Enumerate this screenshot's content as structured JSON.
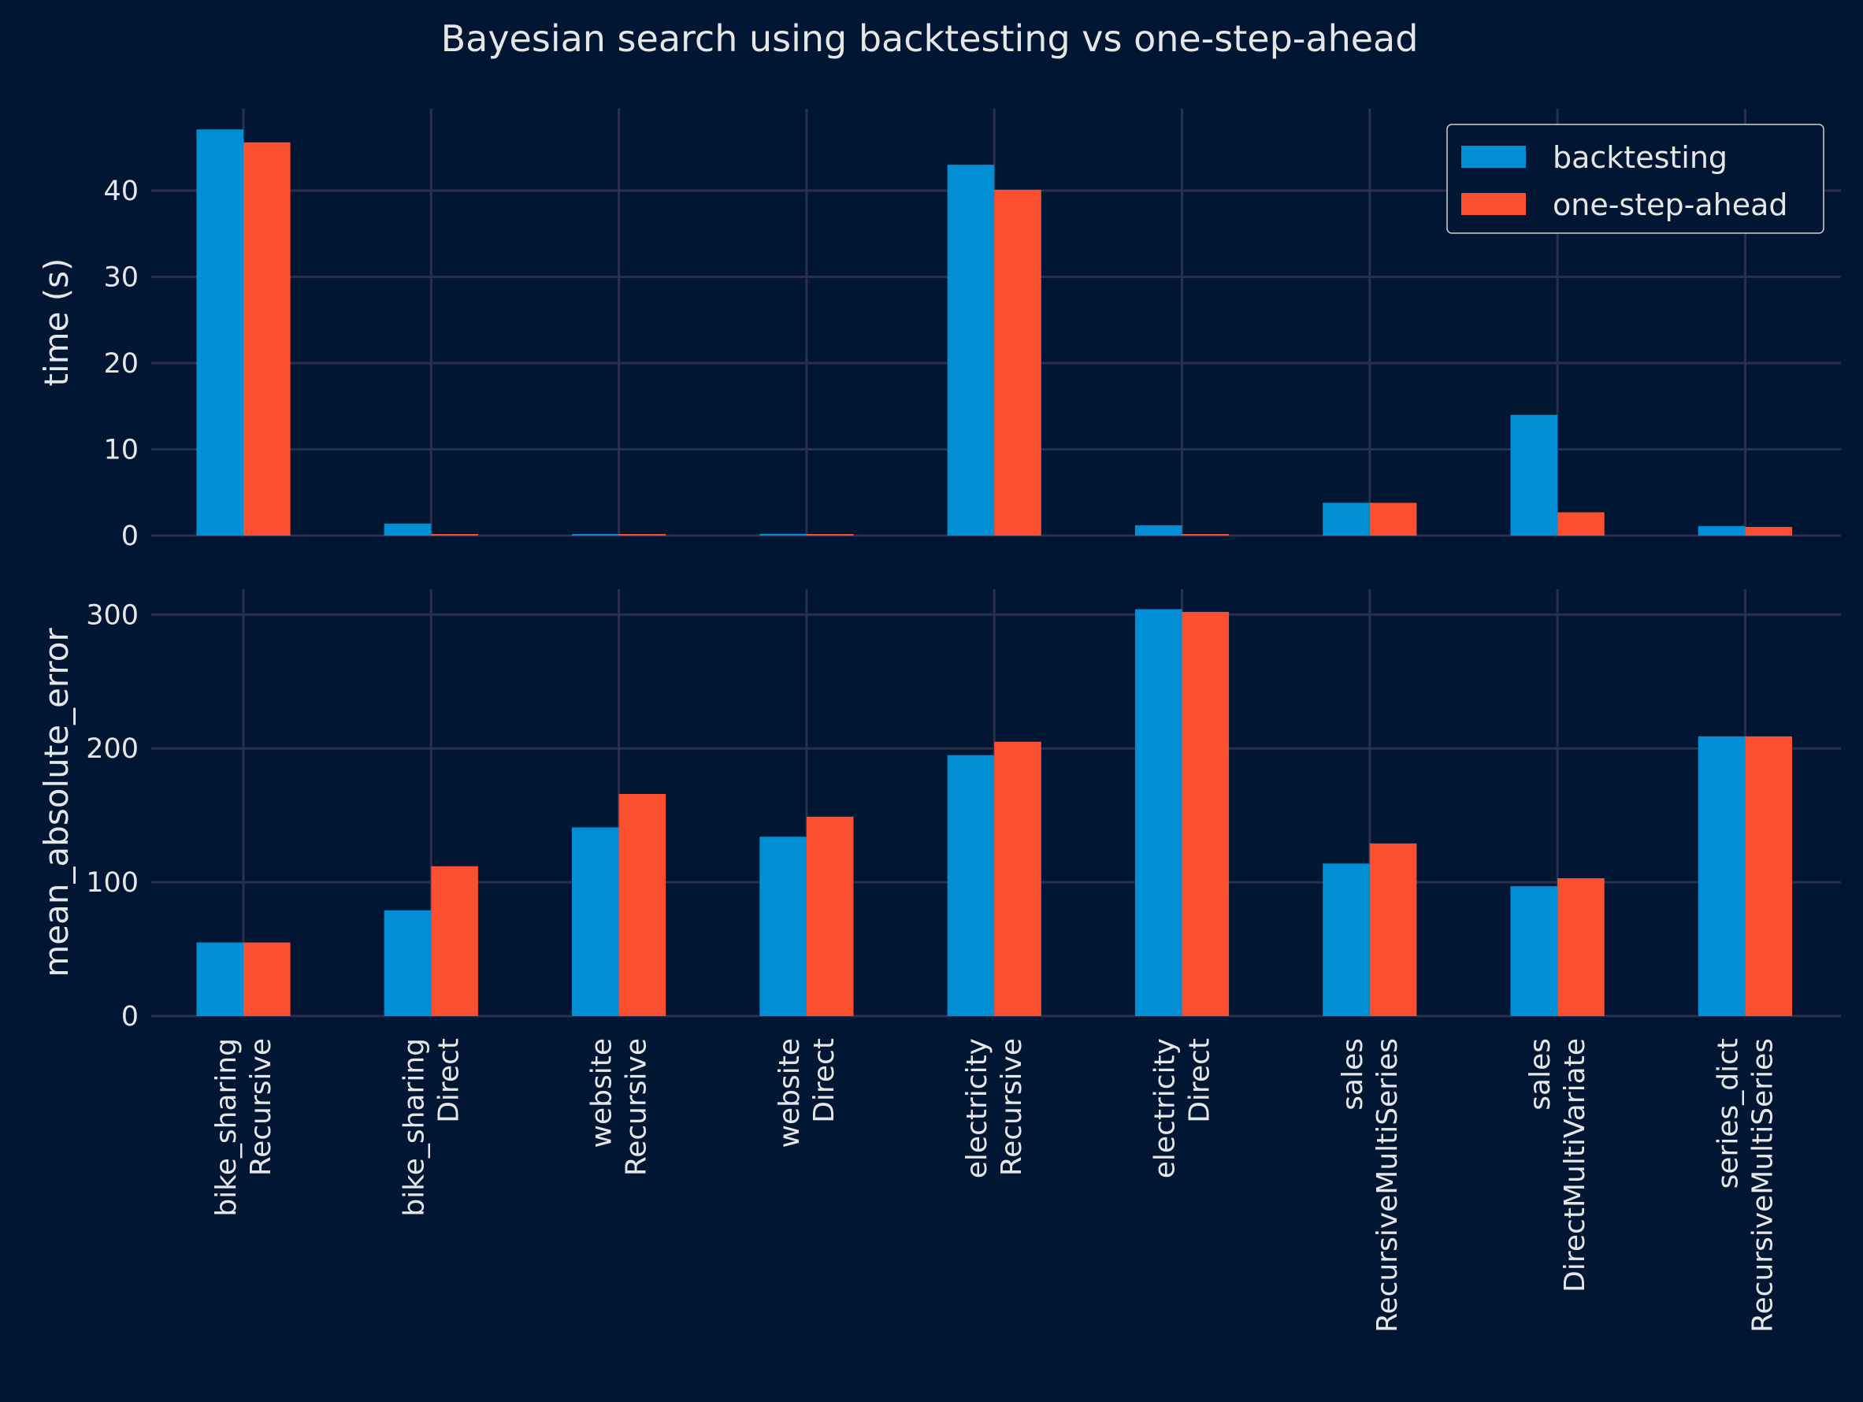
{
  "colors": {
    "background": "#001633",
    "grid": "#2b2f4d",
    "text": "#e6e6e6",
    "backtesting": "#008fd5",
    "one_step_ahead": "#fc4f30"
  },
  "chart_data": [
    {
      "type": "bar",
      "title": "Bayesian search using backtesting vs one-step-ahead",
      "ylabel": "time (s)",
      "xlabel": "",
      "ylim": [
        0,
        49.5
      ],
      "yticks": [
        0,
        10,
        20,
        30,
        40
      ],
      "categories": [
        [
          "bike_sharing",
          "Recursive"
        ],
        [
          "bike_sharing",
          "Direct"
        ],
        [
          "website",
          "Recursive"
        ],
        [
          "website",
          "Direct"
        ],
        [
          "electricity",
          "Recursive"
        ],
        [
          "electricity",
          "Direct"
        ],
        [
          "sales",
          "RecursiveMultiSeries"
        ],
        [
          "sales",
          "DirectMultiVariate"
        ],
        [
          "series_dict",
          "RecursiveMultiSeries"
        ]
      ],
      "series": [
        {
          "name": "backtesting",
          "values": [
            47.1,
            1.4,
            0.1,
            0.2,
            43.0,
            1.2,
            3.8,
            14.0,
            1.1
          ]
        },
        {
          "name": "one-step-ahead",
          "values": [
            45.6,
            0.1,
            0.1,
            0.1,
            40.1,
            0.1,
            3.8,
            2.7,
            1.0
          ]
        }
      ],
      "legend": {
        "position": "top-right",
        "entries": [
          "backtesting",
          "one-step-ahead"
        ]
      },
      "grid": true
    },
    {
      "type": "bar",
      "title": "",
      "ylabel": "mean_absolute_error",
      "xlabel": "",
      "ylim": [
        0,
        319
      ],
      "yticks": [
        0,
        100,
        200,
        300
      ],
      "categories": [
        [
          "bike_sharing",
          "Recursive"
        ],
        [
          "bike_sharing",
          "Direct"
        ],
        [
          "website",
          "Recursive"
        ],
        [
          "website",
          "Direct"
        ],
        [
          "electricity",
          "Recursive"
        ],
        [
          "electricity",
          "Direct"
        ],
        [
          "sales",
          "RecursiveMultiSeries"
        ],
        [
          "sales",
          "DirectMultiVariate"
        ],
        [
          "series_dict",
          "RecursiveMultiSeries"
        ]
      ],
      "series": [
        {
          "name": "backtesting",
          "values": [
            55,
            79,
            141,
            134,
            195,
            304,
            114,
            97,
            209
          ]
        },
        {
          "name": "one-step-ahead",
          "values": [
            55,
            112,
            166,
            149,
            205,
            302,
            129,
            103,
            209
          ]
        }
      ],
      "grid": true
    }
  ]
}
